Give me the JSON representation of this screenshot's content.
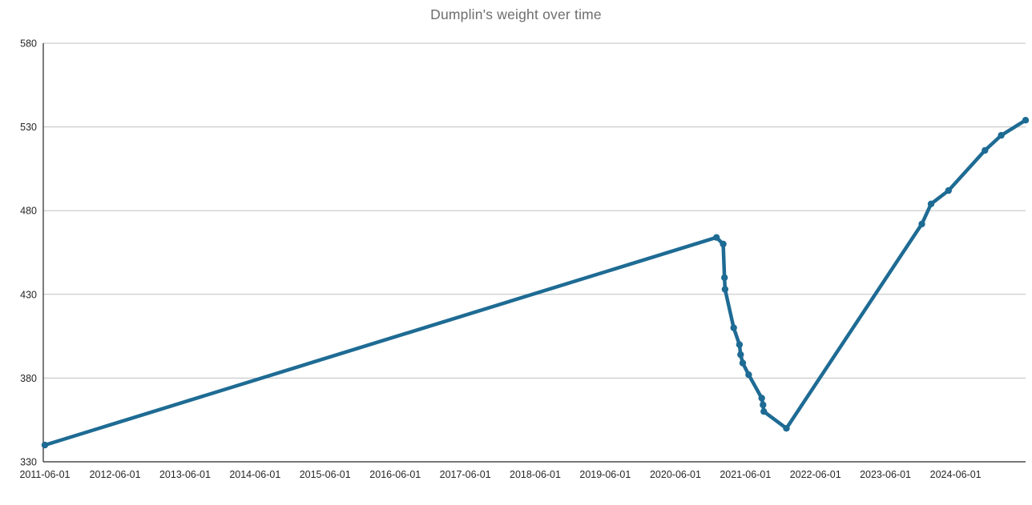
{
  "chart_data": {
    "type": "line",
    "title": "Dumplin's weight over time",
    "xlabel": "",
    "ylabel": "",
    "ylim": [
      330,
      580
    ],
    "y_ticks": [
      330,
      380,
      430,
      480,
      530,
      580
    ],
    "x_ticks": [
      "2011-06-01",
      "2012-06-01",
      "2013-06-01",
      "2014-06-01",
      "2015-06-01",
      "2016-06-01",
      "2017-06-01",
      "2018-06-01",
      "2019-06-01",
      "2020-06-01",
      "2021-06-01",
      "2022-06-01",
      "2023-06-01",
      "2024-06-01"
    ],
    "x_domain": [
      "2011-06-01",
      "2025-06-01"
    ],
    "grid": "horizontal-only",
    "legend_position": "none",
    "colors": {
      "line": "#1e6b94",
      "marker": "#1e6b94",
      "grid": "#c0c0c0",
      "axis": "#262626",
      "tick_label": "#262626",
      "title": "#6e6e6e",
      "background": "#ffffff"
    },
    "series": [
      {
        "name": "weight",
        "marker": "circle",
        "points": [
          {
            "date": "2011-06-01",
            "value": 340
          },
          {
            "date": "2021-01-01",
            "value": 464
          },
          {
            "date": "2021-02-05",
            "value": 460
          },
          {
            "date": "2021-02-12",
            "value": 440
          },
          {
            "date": "2021-02-15",
            "value": 433
          },
          {
            "date": "2021-04-01",
            "value": 410
          },
          {
            "date": "2021-05-01",
            "value": 400
          },
          {
            "date": "2021-05-07",
            "value": 394
          },
          {
            "date": "2021-05-18",
            "value": 389
          },
          {
            "date": "2021-06-18",
            "value": 382
          },
          {
            "date": "2021-08-25",
            "value": 368
          },
          {
            "date": "2021-09-01",
            "value": 364
          },
          {
            "date": "2021-09-05",
            "value": 360
          },
          {
            "date": "2022-01-01",
            "value": 350
          },
          {
            "date": "2023-12-08",
            "value": 472
          },
          {
            "date": "2024-01-25",
            "value": 484
          },
          {
            "date": "2024-04-25",
            "value": 492
          },
          {
            "date": "2024-11-01",
            "value": 516
          },
          {
            "date": "2025-01-25",
            "value": 525
          },
          {
            "date": "2025-06-01",
            "value": 534
          }
        ]
      }
    ]
  }
}
